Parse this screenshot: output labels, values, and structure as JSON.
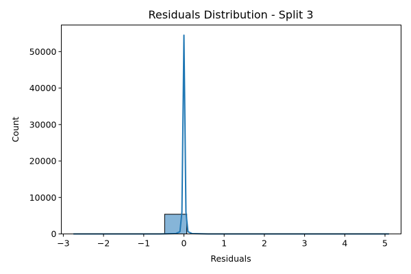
{
  "chart_data": {
    "type": "bar",
    "title": "Residuals Distribution - Split 3",
    "xlabel": "Residuals",
    "ylabel": "Count",
    "xlim": [
      -3.05,
      5.4
    ],
    "ylim": [
      0,
      57300
    ],
    "xticks": [
      -3,
      -2,
      -1,
      0,
      1,
      2,
      3,
      4,
      5
    ],
    "xtick_labels": [
      "−3",
      "−2",
      "−1",
      "0",
      "1",
      "2",
      "3",
      "4",
      "5"
    ],
    "yticks": [
      0,
      10000,
      20000,
      30000,
      40000,
      50000
    ],
    "ytick_labels": [
      "0",
      "10000",
      "20000",
      "30000",
      "40000",
      "50000"
    ],
    "grid": false,
    "histogram": {
      "bins": [
        {
          "x0": -0.48,
          "x1": 0.07,
          "count": 5400
        }
      ],
      "color": "#7fb1d6",
      "edgecolor": "#000000"
    },
    "kde": {
      "name": "",
      "color": "#1f77b4",
      "x": [
        -2.75,
        -0.6,
        -0.2,
        -0.1,
        -0.05,
        0.0,
        0.05,
        0.1,
        0.2,
        0.6,
        5.1
      ],
      "y": [
        0,
        0,
        100,
        600,
        6000,
        54500,
        6000,
        600,
        100,
        0,
        0
      ]
    }
  }
}
